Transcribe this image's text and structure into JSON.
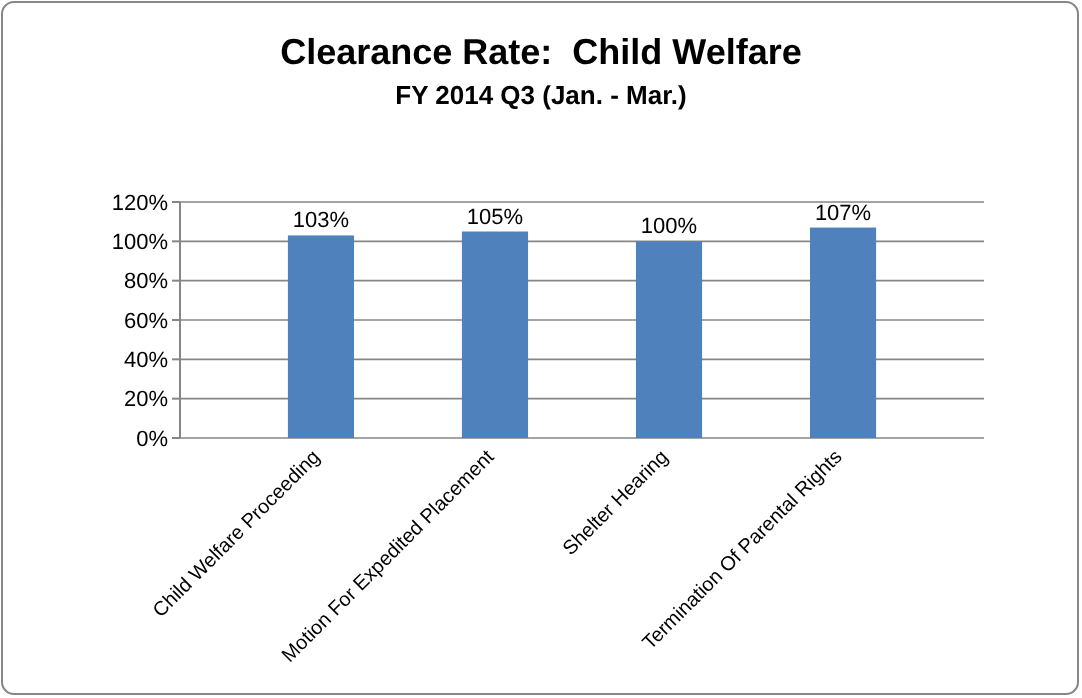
{
  "chart_data": {
    "type": "bar",
    "title": "Clearance Rate:  Child Welfare",
    "subtitle": "FY 2014 Q3 (Jan. - Mar.)",
    "categories": [
      "Child Welfare Proceeding",
      "Motion For Expedited Placement",
      "Shelter Hearing",
      "Termination Of Parental Rights"
    ],
    "values": [
      103,
      105,
      100,
      107
    ],
    "color": "#4f81bd",
    "value_labels": [
      "103%",
      "105%",
      "100%",
      "107%"
    ],
    "ylim": [
      0,
      120
    ],
    "yticks": [
      {
        "value": 0,
        "label": "0%"
      },
      {
        "value": 20,
        "label": "20%"
      },
      {
        "value": 40,
        "label": "40%"
      },
      {
        "value": 60,
        "label": "60%"
      },
      {
        "value": 80,
        "label": "80%"
      },
      {
        "value": 100,
        "label": "100%"
      },
      {
        "value": 120,
        "label": "120%"
      }
    ],
    "grid": "y"
  }
}
